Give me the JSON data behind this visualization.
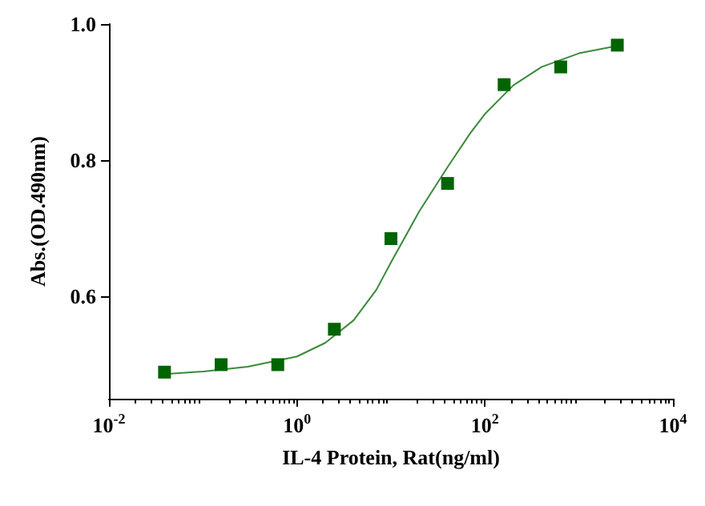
{
  "chart_data": {
    "type": "scatter",
    "xlabel": "IL-4 Protein, Rat(ng/ml)",
    "ylabel": "Abs.(OD.490nm)",
    "log": "x",
    "grid": false,
    "xlim": [
      0.01,
      10000
    ],
    "xticks": [
      {
        "value": 0.01,
        "label": "10$^{-2}$"
      },
      {
        "value": 1,
        "label": "10$^{0}$"
      },
      {
        "value": 100,
        "label": "10$^{2}$"
      },
      {
        "value": 10000,
        "label": "10$^{4}$"
      }
    ],
    "ylim": [
      0.45,
      1.0
    ],
    "yticks": [
      0.6,
      0.8,
      {
        "value": 1.0,
        "label": "1.0"
      }
    ],
    "series": [
      {
        "marker": "square",
        "color": "#006400",
        "x": [
          0.039,
          0.156,
          0.625,
          2.5,
          10,
          40,
          160,
          640,
          2560
        ],
        "values": [
          0.489,
          0.5,
          0.5,
          0.552,
          0.685,
          0.766,
          0.911,
          0.937,
          0.969
        ]
      },
      {
        "type": "line",
        "marker": "none",
        "color": "#3a8a3a",
        "x": [
          0.039,
          0.1,
          0.3,
          1,
          2,
          4,
          7,
          10,
          20,
          40,
          70,
          100,
          200,
          400,
          1000,
          2560
        ],
        "values": [
          0.486,
          0.49,
          0.497,
          0.512,
          0.532,
          0.565,
          0.61,
          0.65,
          0.725,
          0.79,
          0.84,
          0.868,
          0.91,
          0.937,
          0.957,
          0.968
        ]
      }
    ]
  }
}
